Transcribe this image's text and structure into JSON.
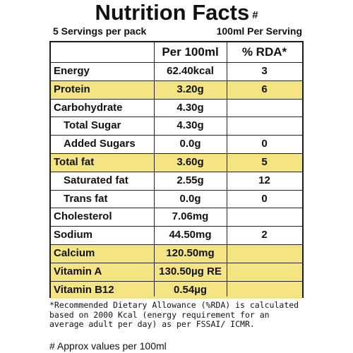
{
  "title": "Nutrition Facts",
  "title_mark": "#",
  "servings_per_pack": "5 Servings per pack",
  "serving_size": "100ml Per Serving",
  "columns": {
    "per100": "Per 100ml",
    "rda": "% RDA*"
  },
  "rows": [
    {
      "name": "Energy",
      "value": "62.40kcal",
      "rda": "3",
      "highlight": false,
      "indent": false
    },
    {
      "name": "Protein",
      "value": "3.20g",
      "rda": "6",
      "highlight": true,
      "indent": false
    },
    {
      "name": "Carbohydrate",
      "value": "4.30g",
      "rda": "",
      "highlight": false,
      "indent": false
    },
    {
      "name": "Total Sugar",
      "value": "4.30g",
      "rda": "",
      "highlight": false,
      "indent": true
    },
    {
      "name": "Added Sugars",
      "value": "0.0g",
      "rda": "0",
      "highlight": false,
      "indent": true
    },
    {
      "name": "Total fat",
      "value": "3.60g",
      "rda": "5",
      "highlight": true,
      "indent": false
    },
    {
      "name": "Saturated fat",
      "value": "2.55g",
      "rda": "12",
      "highlight": false,
      "indent": true
    },
    {
      "name": "Trans fat",
      "value": "0.0g",
      "rda": "0",
      "highlight": false,
      "indent": true
    },
    {
      "name": "Cholesterol",
      "value": "7.06mg",
      "rda": "",
      "highlight": false,
      "indent": false
    },
    {
      "name": "Sodium",
      "value": "44.50mg",
      "rda": "2",
      "highlight": false,
      "indent": false
    },
    {
      "name": "Calcium",
      "value": "120.50mg",
      "rda": "",
      "highlight": true,
      "indent": false
    },
    {
      "name": "Vitamin A",
      "value": "130.50µg RE",
      "rda": "",
      "highlight": true,
      "indent": false
    },
    {
      "name": "Vitamin B12",
      "value": "0.54µg",
      "rda": "",
      "highlight": true,
      "indent": false
    }
  ],
  "footnote": "*Recommended Dietary Allowance (%RDA) is calculated based on 2000 Kcal (energy requirement for an average adult per day) as per FSSAI/ ICMR.",
  "approx_note": "# Approx values per 100ml",
  "colors": {
    "highlight": "#f5e484",
    "border": "#1a1a1a"
  }
}
